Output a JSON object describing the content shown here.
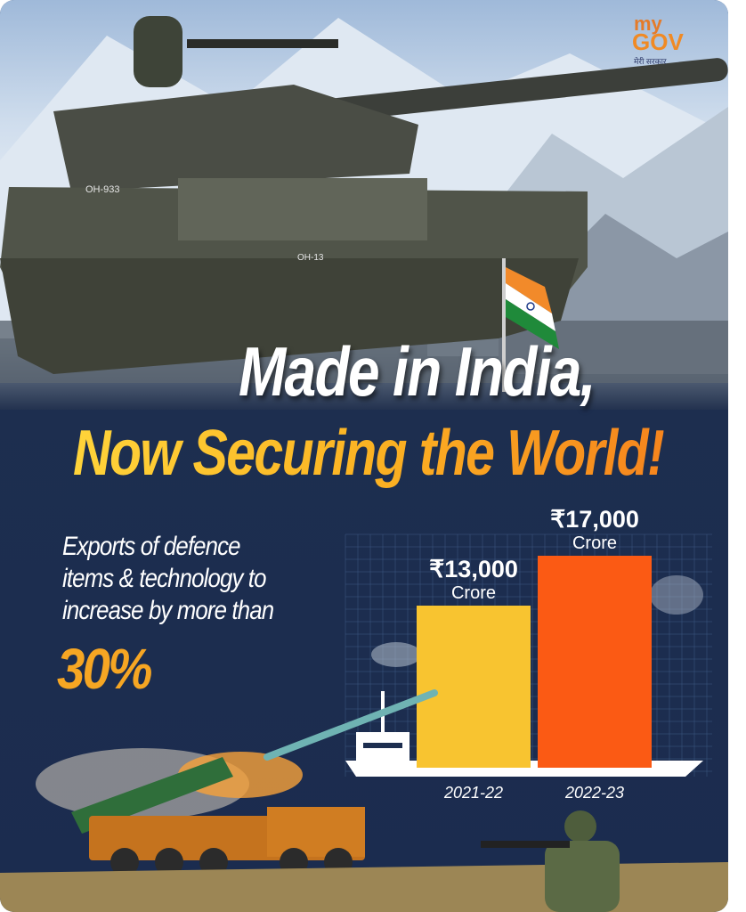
{
  "brand": {
    "logo_my": "my",
    "logo_gov": "GOV",
    "logo_sub": "मेरी सरकार"
  },
  "headline": {
    "line1": "Made in India,",
    "line2": "Now Securing the World!"
  },
  "description": {
    "lines": [
      "Exports of defence",
      "items & technology to",
      "increase by more than"
    ],
    "highlight": "30%"
  },
  "tank_markings": {
    "hull": "OH-933",
    "turret": "OH-13"
  },
  "colors": {
    "bar_2021": "#f8c430",
    "bar_2022": "#fb5a14",
    "headline_yellow": "#f8b424",
    "background_navy": "#1d2e4f",
    "saffron": "#f28a2a",
    "india_green": "#1f8a3a"
  },
  "icons": [
    "tank-illustration",
    "india-flag-icon",
    "cargo-ship-icon",
    "missile-launcher-illustration",
    "soldier-illustration"
  ],
  "chart_data": {
    "type": "bar",
    "title": "",
    "xlabel": "",
    "ylabel": "",
    "categories": [
      "2021-22",
      "2022-23"
    ],
    "values": [
      13000,
      17000
    ],
    "value_labels": [
      "₹13,000",
      "₹17,000"
    ],
    "unit_label": "Crore",
    "ylim": [
      0,
      17000
    ],
    "grid": true,
    "legend": "none"
  }
}
